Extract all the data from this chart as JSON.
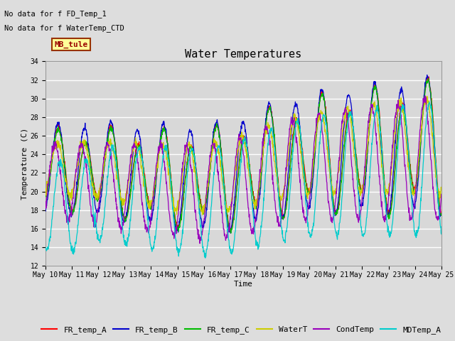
{
  "title": "Water Temperatures",
  "xlabel": "Time",
  "ylabel": "Temperature (C)",
  "ylim": [
    12,
    34
  ],
  "yticks": [
    12,
    14,
    16,
    18,
    20,
    22,
    24,
    26,
    28,
    30,
    32,
    34
  ],
  "annotation_lines": [
    "No data for f FD_Temp_1",
    "No data for f WaterTemp_CTD"
  ],
  "mb_tule_label": "MB_tule",
  "legend_entries": [
    "FR_temp_A",
    "FR_temp_B",
    "FR_temp_C",
    "WaterT",
    "CondTemp",
    "MDTemp_A"
  ],
  "line_colors": [
    "#FF0000",
    "#0000CC",
    "#00BB00",
    "#CCCC00",
    "#9900BB",
    "#00CCCC"
  ],
  "background_color": "#DDDDDD",
  "plot_bg_color": "#D8D8D8",
  "grid_color": "#FFFFFF",
  "font_size_ticks": 7,
  "font_size_title": 11,
  "font_size_legend": 8,
  "x_tick_days": [
    10,
    11,
    12,
    13,
    14,
    15,
    16,
    17,
    18,
    19,
    20,
    21,
    22,
    23,
    24,
    25
  ]
}
